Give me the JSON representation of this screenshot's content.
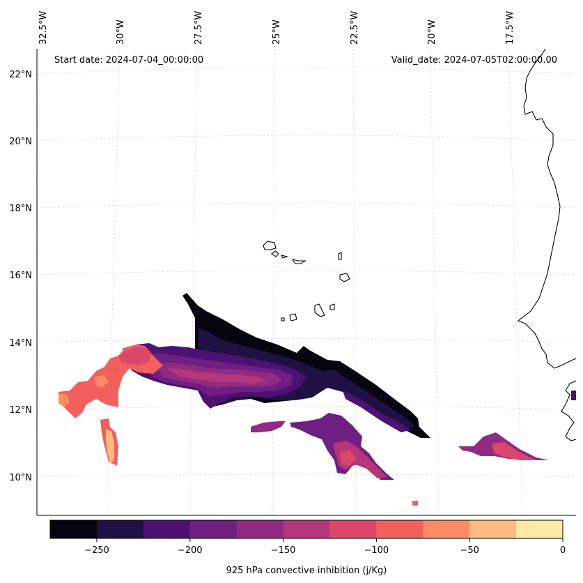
{
  "map": {
    "start_label": "Start date: 2024-07-04_00:00:00",
    "valid_label": "Valid_date: 2024-07-05T02:00:00.00",
    "lon_labels": [
      "32.5°W",
      "30°W",
      "27.5°W",
      "25°W",
      "22.5°W",
      "20°W",
      "17.5°W"
    ],
    "lat_labels": [
      "22°N",
      "20°N",
      "18°N",
      "16°N",
      "14°N",
      "12°N",
      "10°N"
    ],
    "grid": true
  },
  "colorbar": {
    "title": "925 hPa convective inhibition (j/Kg)",
    "ticks": [
      "−250",
      "−200",
      "−150",
      "−100",
      "−50",
      "0"
    ],
    "range": [
      -275,
      0
    ],
    "levels": [
      -275,
      -250,
      -225,
      -200,
      -175,
      -150,
      -125,
      -100,
      -75,
      -50,
      -25,
      0
    ],
    "colors": [
      "#05040f",
      "#1f1144",
      "#4d1173",
      "#6f1e81",
      "#912b81",
      "#b5367a",
      "#db476b",
      "#f1605d",
      "#fd8b63",
      "#febb81",
      "#fde9a4"
    ]
  }
}
